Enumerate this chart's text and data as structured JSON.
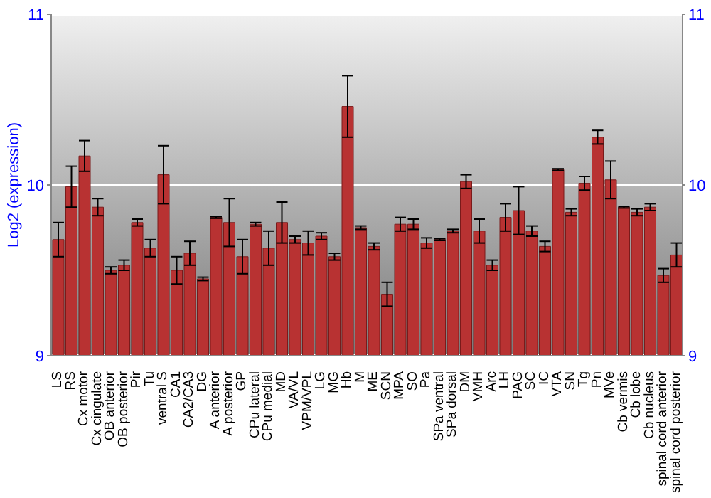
{
  "chart_data": {
    "type": "bar",
    "ylabel": "Log2 (expression)",
    "categories": [
      "LS",
      "RS",
      "Cx motor",
      "Cx cingulate",
      "OB anterior",
      "OB posterior",
      "Pir",
      "Tu",
      "ventral S",
      "CA1",
      "CA2/CA3",
      "DG",
      "A anterior",
      "A posterior",
      "GP",
      "CPu lateral",
      "CPu medial",
      "MD",
      "VA/VL",
      "VPM/VPL",
      "LG",
      "MG",
      "Hb",
      "M",
      "ME",
      "SCN",
      "MPA",
      "SO",
      "Pa",
      "SPa ventral",
      "SPa dorsal",
      "DM",
      "VMH",
      "Arc",
      "LH",
      "PAG",
      "SC",
      "IC",
      "VTA",
      "SN",
      "Tg",
      "Pn",
      "MVe",
      "Cb vermis",
      "Cb lobe",
      "Cb nucleus",
      "spinal cord anterior",
      "spinal cord posterior"
    ],
    "values": [
      9.68,
      9.99,
      10.17,
      9.87,
      9.5,
      9.53,
      9.78,
      9.63,
      10.06,
      9.5,
      9.6,
      9.45,
      9.81,
      9.78,
      9.58,
      9.77,
      9.63,
      9.78,
      9.68,
      9.66,
      9.7,
      9.58,
      10.46,
      9.75,
      9.64,
      9.36,
      9.77,
      9.77,
      9.66,
      9.68,
      9.73,
      10.02,
      9.73,
      9.53,
      9.81,
      9.85,
      9.73,
      9.64,
      10.09,
      9.84,
      10.01,
      10.28,
      10.03,
      9.87,
      9.84,
      9.87,
      9.47,
      9.59
    ],
    "errors": [
      0.1,
      0.12,
      0.09,
      0.05,
      0.02,
      0.03,
      0.02,
      0.05,
      0.17,
      0.08,
      0.07,
      0.01,
      0.005,
      0.14,
      0.1,
      0.01,
      0.1,
      0.12,
      0.02,
      0.07,
      0.02,
      0.02,
      0.18,
      0.01,
      0.02,
      0.07,
      0.04,
      0.03,
      0.03,
      0.005,
      0.01,
      0.04,
      0.07,
      0.03,
      0.08,
      0.14,
      0.03,
      0.03,
      0.005,
      0.02,
      0.04,
      0.04,
      0.11,
      0.005,
      0.02,
      0.02,
      0.04,
      0.07
    ],
    "color": "#b83232",
    "ylim": [
      9,
      11
    ],
    "yticks": [
      9,
      10,
      11
    ],
    "y2lim": [
      9,
      11
    ],
    "y2ticks": [
      9,
      10,
      11
    ],
    "grid": "y"
  }
}
